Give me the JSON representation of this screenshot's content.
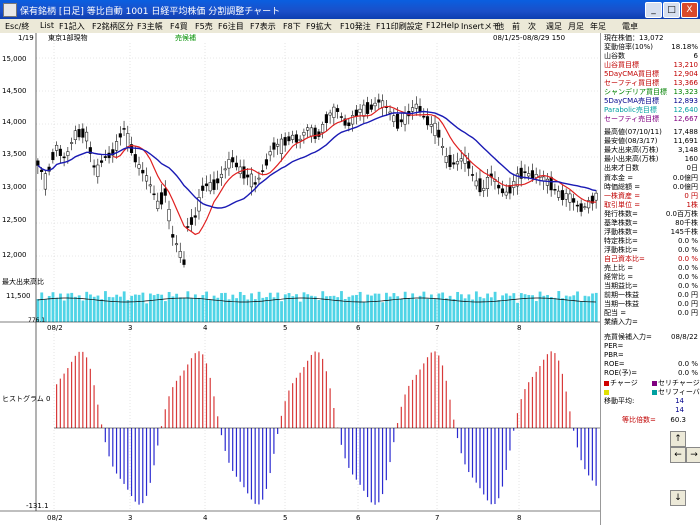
{
  "window": {
    "title": "保有銘柄 [日足] 等比自動   1001  日経平均株価 分割調整チャート",
    "min_label": "_",
    "max_label": "□",
    "close_label": "X"
  },
  "menu": [
    "Esc/終",
    "List",
    "F1記入",
    "F2銘柄区分",
    "F3主帳",
    "F4買",
    "F5売",
    "F6注目",
    "F7表示",
    "F8下",
    "F9拡大",
    "F10発注",
    "F11印刷設定",
    "F12Help",
    "Insertメモ",
    "他",
    "前",
    "次",
    "週足",
    "月足",
    "年足",
    "電卓"
  ],
  "chart": {
    "header_page": "1/19",
    "header_name": "東京1部現物",
    "header_signal": "売候補",
    "header_range": "08/1/25-08/8/29 150",
    "price_labels": [
      "15,000",
      "14,500",
      "14,000",
      "13,500",
      "13,000",
      "12,500",
      "12,000"
    ],
    "volume_label": "最大出来高比",
    "volume_value": "11,500",
    "volume_min": "776.1",
    "month_labels": [
      "08/2",
      "3",
      "4",
      "5",
      "6",
      "7",
      "8"
    ],
    "osc_top_label": "",
    "osc_axis_label": "ヒストグラム  0",
    "osc_bottom_label": "-131.1",
    "colors": {
      "candle": "#000000",
      "ma_red": "#e02020",
      "ma_blue": "#1a1ab4",
      "volume": "#4fd4e6",
      "hist_pos": "#d83a3a",
      "hist_neg": "#2a2ad0",
      "grid": "#b0b0b0"
    }
  },
  "info": {
    "rows1": [
      {
        "k": "現在株価：13,072",
        "v": "",
        "c": "#000"
      },
      {
        "k": "変動倍率(10%)",
        "v": "18.18%",
        "c": "#000"
      },
      {
        "k": "山谷数",
        "v": "6",
        "c": "#000"
      },
      {
        "k": "山谷買目標",
        "v": "13,210",
        "c": "#c00000"
      },
      {
        "k": "5DayCMA買目標",
        "v": "12,904",
        "c": "#c00000"
      },
      {
        "k": "セーフティ買目標",
        "v": "13,366",
        "c": "#c00000"
      },
      {
        "k": "シャンデリア買目標",
        "v": "13,323",
        "c": "#008000"
      },
      {
        "k": "5DayCMA売目標",
        "v": "12,893",
        "c": "#00008b"
      },
      {
        "k": "Parabolic売目標",
        "v": "12,640",
        "c": "#00a0a0"
      },
      {
        "k": "セーフティ売目標",
        "v": "12,667",
        "c": "#800080"
      }
    ],
    "rows2": [
      {
        "k": "最高値(07/10/11)",
        "v": "17,488",
        "c": "#000"
      },
      {
        "k": "最安値(08/3/17)",
        "v": "11,691",
        "c": "#000"
      },
      {
        "k": "最大出来高(万株)",
        "v": "3,148",
        "c": "#000"
      },
      {
        "k": "最小出来高(万株)",
        "v": "160",
        "c": "#000"
      },
      {
        "k": "出来才日数",
        "v": "0日",
        "c": "#000"
      }
    ],
    "rows3": [
      {
        "k": "資本金 =",
        "v": "0.0億円",
        "c": "#000"
      },
      {
        "k": "時価総額 =",
        "v": "0.0億円",
        "c": "#000"
      },
      {
        "k": "一株資産 =",
        "v": "0 円",
        "c": "#c00000"
      },
      {
        "k": "取引単位 =",
        "v": "1株",
        "c": "#c00000"
      },
      {
        "k": "発行株数=",
        "v": "0.0百万株",
        "c": "#000"
      },
      {
        "k": "基準株数=",
        "v": "80千株",
        "c": "#000"
      },
      {
        "k": "浮動株数=",
        "v": "145千株",
        "c": "#000"
      },
      {
        "k": "特定株比=",
        "v": "0.0 %",
        "c": "#000"
      },
      {
        "k": "浮動株比=",
        "v": "0.0 %",
        "c": "#000"
      },
      {
        "k": "自己資本比=",
        "v": "0.0 %",
        "c": "#c00000"
      },
      {
        "k": "売上比 =",
        "v": "0.0 %",
        "c": "#000"
      },
      {
        "k": "経常比 =",
        "v": "0.0 %",
        "c": "#000"
      },
      {
        "k": "当期益比=",
        "v": "0.0 %",
        "c": "#000"
      },
      {
        "k": "前期一株益",
        "v": "0.0 円",
        "c": "#000"
      },
      {
        "k": "当期一株益",
        "v": "0.0 円",
        "c": "#000"
      },
      {
        "k": "配当 =",
        "v": "0.0 円",
        "c": "#000"
      },
      {
        "k": "業績入力=",
        "v": "",
        "c": "#000"
      }
    ],
    "rows4": [
      {
        "k": "売買候補入力=",
        "v": "08/8/22",
        "c": "#000"
      },
      {
        "k": "PER=",
        "v": "",
        "c": "#000"
      },
      {
        "k": "PBR=",
        "v": "",
        "c": "#000"
      },
      {
        "k": "ROE=",
        "v": "0.0 %",
        "c": "#000"
      },
      {
        "k": "ROE(予)=",
        "v": "0.0 %",
        "c": "#000"
      }
    ],
    "legend": [
      {
        "label": "チャージ",
        "color": "#d00000"
      },
      {
        "label": "セリチャージ",
        "color": "#800080"
      },
      {
        "label": "",
        "color": "#e0e000"
      },
      {
        "label": "セリフィーバー",
        "color": "#00a0a0"
      }
    ],
    "avg_label": "移動平均:",
    "avg1": "14",
    "avg2": "14",
    "ratio_label": "等比倍数=",
    "ratio_value": "60.3"
  },
  "nav": {
    "up": "↑",
    "left": "←",
    "right": "→",
    "down": "↓"
  }
}
